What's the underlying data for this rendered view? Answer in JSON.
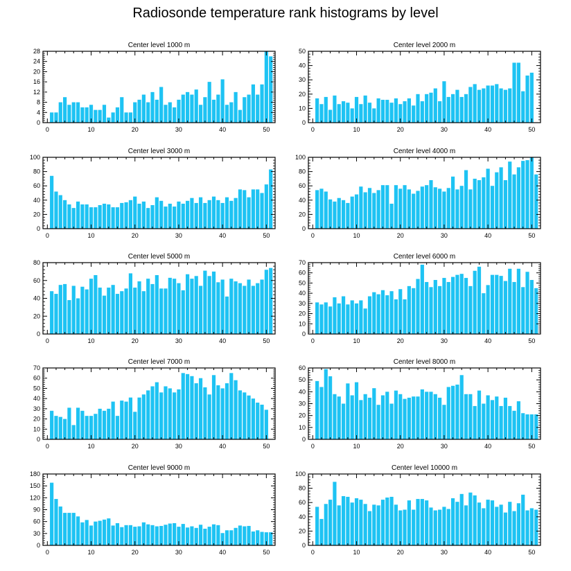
{
  "figure": {
    "title": "Radiosonde temperature rank histograms by level"
  },
  "bar_color": "#1ec3f3",
  "chart_data": [
    {
      "type": "bar",
      "title": "Center level 1000 m",
      "xlim": [
        -1,
        52
      ],
      "ylim": [
        0,
        28
      ],
      "xticks": [
        0,
        10,
        20,
        30,
        40,
        50
      ],
      "yticks": [
        0,
        4,
        8,
        12,
        16,
        20,
        24,
        28
      ],
      "values": [
        4,
        4,
        8,
        10,
        7,
        8,
        8,
        6,
        6,
        7,
        5,
        5,
        7,
        2,
        4,
        6,
        10,
        4,
        4,
        8,
        9,
        11,
        8,
        12,
        9,
        14,
        7,
        8,
        6,
        9,
        11,
        12,
        11,
        13,
        7,
        10,
        16,
        9,
        11,
        17,
        7,
        8,
        12,
        5,
        10,
        11,
        15,
        11,
        15,
        28,
        26
      ]
    },
    {
      "type": "bar",
      "title": "Center level 2000 m",
      "xlim": [
        -1,
        52
      ],
      "ylim": [
        0,
        50
      ],
      "xticks": [
        0,
        10,
        20,
        30,
        40,
        50
      ],
      "yticks": [
        0,
        10,
        20,
        30,
        40,
        50
      ],
      "values": [
        17,
        13,
        18,
        9,
        19,
        13,
        15,
        14,
        10,
        18,
        13,
        19,
        14,
        10,
        17,
        16,
        16,
        14,
        17,
        13,
        15,
        17,
        12,
        20,
        15,
        20,
        21,
        24,
        15,
        29,
        18,
        20,
        23,
        18,
        20,
        25,
        27,
        23,
        24,
        26,
        26,
        27,
        24,
        23,
        24,
        42,
        42,
        22,
        33,
        35
      ]
    },
    {
      "type": "bar",
      "title": "Center level 3000 m",
      "xlim": [
        -1,
        52
      ],
      "ylim": [
        0,
        100
      ],
      "xticks": [
        0,
        10,
        20,
        30,
        40,
        50
      ],
      "yticks": [
        0,
        20,
        40,
        60,
        80,
        100
      ],
      "values": [
        74,
        52,
        47,
        40,
        34,
        29,
        38,
        34,
        34,
        30,
        30,
        33,
        35,
        34,
        30,
        30,
        36,
        37,
        40,
        45,
        35,
        38,
        29,
        33,
        44,
        39,
        31,
        35,
        31,
        38,
        35,
        39,
        43,
        36,
        44,
        36,
        40,
        45,
        40,
        36,
        44,
        39,
        43,
        55,
        54,
        44,
        55,
        55,
        50,
        62,
        83
      ]
    },
    {
      "type": "bar",
      "title": "Center level 4000 m",
      "xlim": [
        -1,
        52
      ],
      "ylim": [
        0,
        100
      ],
      "xticks": [
        0,
        10,
        20,
        30,
        40,
        50
      ],
      "yticks": [
        0,
        20,
        40,
        60,
        80,
        100
      ],
      "values": [
        54,
        56,
        52,
        41,
        38,
        43,
        40,
        36,
        45,
        48,
        59,
        51,
        57,
        50,
        54,
        61,
        61,
        35,
        61,
        56,
        61,
        55,
        49,
        53,
        59,
        61,
        68,
        58,
        56,
        52,
        57,
        73,
        55,
        60,
        82,
        55,
        70,
        68,
        72,
        84,
        60,
        79,
        86,
        68,
        94,
        76,
        86,
        95,
        96,
        100,
        76
      ]
    },
    {
      "type": "bar",
      "title": "Center level 5000 m",
      "xlim": [
        -1,
        52
      ],
      "ylim": [
        0,
        80
      ],
      "xticks": [
        0,
        10,
        20,
        30,
        40,
        50
      ],
      "yticks": [
        0,
        20,
        40,
        60,
        80
      ],
      "values": [
        48,
        45,
        55,
        56,
        38,
        54,
        40,
        53,
        50,
        62,
        66,
        52,
        43,
        52,
        55,
        45,
        48,
        51,
        68,
        52,
        59,
        48,
        62,
        56,
        66,
        51,
        51,
        63,
        62,
        57,
        49,
        67,
        62,
        65,
        54,
        71,
        65,
        70,
        58,
        61,
        42,
        62,
        59,
        57,
        54,
        61,
        54,
        57,
        61,
        72,
        74
      ]
    },
    {
      "type": "bar",
      "title": "Center level 6000 m",
      "xlim": [
        -1,
        52
      ],
      "ylim": [
        0,
        70
      ],
      "xticks": [
        0,
        10,
        20,
        30,
        40,
        50
      ],
      "yticks": [
        0,
        10,
        20,
        30,
        40,
        50,
        60,
        70
      ],
      "values": [
        31,
        29,
        31,
        27,
        36,
        30,
        37,
        29,
        33,
        30,
        33,
        25,
        37,
        41,
        39,
        43,
        38,
        42,
        34,
        44,
        34,
        47,
        45,
        54,
        68,
        51,
        46,
        53,
        47,
        55,
        51,
        56,
        58,
        59,
        55,
        47,
        62,
        66,
        40,
        48,
        58,
        58,
        57,
        52,
        64,
        51,
        64,
        46,
        61,
        53,
        45
      ]
    },
    {
      "type": "bar",
      "title": "Center level 7000 m",
      "xlim": [
        -1,
        52
      ],
      "ylim": [
        0,
        70
      ],
      "xticks": [
        0,
        10,
        20,
        30,
        40,
        50
      ],
      "yticks": [
        0,
        10,
        20,
        30,
        40,
        50,
        60,
        70
      ],
      "values": [
        28,
        23,
        22,
        20,
        31,
        14,
        31,
        28,
        23,
        23,
        25,
        30,
        28,
        30,
        37,
        23,
        38,
        37,
        41,
        27,
        41,
        44,
        48,
        52,
        56,
        46,
        52,
        50,
        46,
        49,
        65,
        64,
        62,
        55,
        60,
        51,
        44,
        63,
        53,
        50,
        55,
        65,
        58,
        48,
        46,
        43,
        40,
        36,
        34,
        29
      ]
    },
    {
      "type": "bar",
      "title": "Center level 8000 m",
      "xlim": [
        -1,
        52
      ],
      "ylim": [
        0,
        60
      ],
      "xticks": [
        0,
        10,
        20,
        30,
        40,
        50
      ],
      "yticks": [
        0,
        10,
        20,
        30,
        40,
        50,
        60
      ],
      "values": [
        49,
        44,
        59,
        53,
        38,
        36,
        30,
        47,
        37,
        48,
        33,
        38,
        35,
        43,
        29,
        37,
        40,
        30,
        41,
        38,
        34,
        35,
        36,
        36,
        42,
        40,
        40,
        38,
        35,
        29,
        44,
        45,
        46,
        54,
        38,
        38,
        28,
        41,
        30,
        37,
        33,
        36,
        28,
        35,
        28,
        24,
        32,
        22,
        21,
        21,
        21
      ]
    },
    {
      "type": "bar",
      "title": "Center level 9000 m",
      "xlim": [
        -1,
        52
      ],
      "ylim": [
        0,
        180
      ],
      "xticks": [
        0,
        10,
        20,
        30,
        40,
        50
      ],
      "yticks": [
        0,
        30,
        60,
        90,
        120,
        150,
        180
      ],
      "values": [
        158,
        117,
        98,
        82,
        82,
        82,
        73,
        58,
        64,
        50,
        60,
        62,
        65,
        68,
        50,
        56,
        46,
        51,
        51,
        47,
        48,
        58,
        53,
        51,
        48,
        49,
        52,
        55,
        56,
        47,
        54,
        45,
        48,
        44,
        52,
        42,
        47,
        53,
        51,
        31,
        38,
        38,
        44,
        50,
        48,
        49,
        35,
        38,
        34,
        33,
        33
      ]
    },
    {
      "type": "bar",
      "title": "Center level 10000 m",
      "xlim": [
        -1,
        52
      ],
      "ylim": [
        0,
        100
      ],
      "xticks": [
        0,
        10,
        20,
        30,
        40,
        50
      ],
      "yticks": [
        0,
        20,
        40,
        60,
        80,
        100
      ],
      "values": [
        54,
        37,
        58,
        64,
        89,
        56,
        69,
        68,
        60,
        66,
        64,
        58,
        48,
        57,
        56,
        64,
        67,
        68,
        57,
        49,
        50,
        63,
        50,
        65,
        65,
        63,
        53,
        49,
        50,
        54,
        51,
        66,
        61,
        72,
        56,
        74,
        70,
        60,
        52,
        64,
        63,
        54,
        57,
        46,
        61,
        48,
        59,
        71,
        49,
        52,
        50
      ]
    }
  ]
}
